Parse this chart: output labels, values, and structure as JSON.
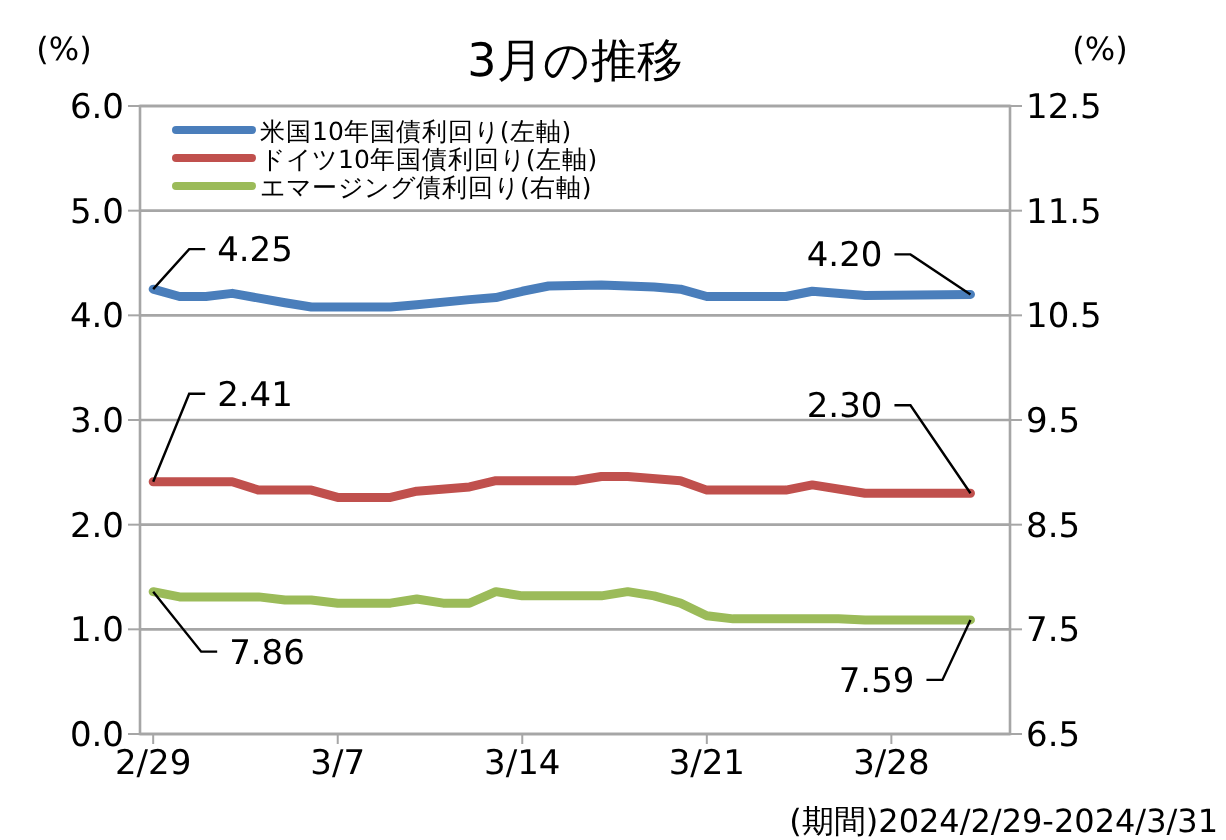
{
  "chart_data": {
    "type": "line",
    "title": "3月の推移",
    "ylabel": "(%)",
    "y2label": "(%)",
    "annotations": [
      "(期間)2024/2/29-2024/3/31"
    ],
    "xlim": [
      "2024-02-28T12:00",
      "2024-04-01T12:00"
    ],
    "xticks": [
      {
        "value": "2024-02-29",
        "label": "2/29"
      },
      {
        "value": "2024-03-07",
        "label": "3/7"
      },
      {
        "value": "2024-03-14",
        "label": "3/14"
      },
      {
        "value": "2024-03-21",
        "label": "3/21"
      },
      {
        "value": "2024-03-28",
        "label": "3/28"
      }
    ],
    "ylim": [
      0,
      6
    ],
    "yticks": [
      {
        "value": 0,
        "label": "0.0"
      },
      {
        "value": 1,
        "label": "1.0"
      },
      {
        "value": 2,
        "label": "2.0"
      },
      {
        "value": 3,
        "label": "3.0"
      },
      {
        "value": 4,
        "label": "4.0"
      },
      {
        "value": 5,
        "label": "5.0"
      },
      {
        "value": 6,
        "label": "6.0"
      }
    ],
    "y2lim": [
      6.5,
      12.5
    ],
    "y2ticks": [
      6.5,
      7.5,
      8.5,
      9.5,
      10.5,
      11.5,
      12.5
    ],
    "grid": "y",
    "legend": "top left",
    "marker": "none",
    "line_style": "solid",
    "series": [
      {
        "name": "米国10年国債利回り(左軸)",
        "color": "#4a7ebb",
        "x": [
          "2024-02-29",
          "2024-03-01",
          "2024-03-02",
          "2024-03-03",
          "2024-03-05",
          "2024-03-06",
          "2024-03-09",
          "2024-03-10",
          "2024-03-12",
          "2024-03-13",
          "2024-03-14",
          "2024-03-15",
          "2024-03-17",
          "2024-03-19",
          "2024-03-20",
          "2024-03-21",
          "2024-03-24",
          "2024-03-25",
          "2024-03-27",
          "2024-03-31"
        ],
        "values": [
          4.25,
          4.18,
          4.18,
          4.21,
          4.12,
          4.08,
          4.08,
          4.1,
          4.15,
          4.17,
          4.23,
          4.28,
          4.29,
          4.27,
          4.25,
          4.18,
          4.18,
          4.23,
          4.19,
          4.2
        ],
        "value_labels": [
          "4.25",
          null,
          null,
          null,
          null,
          null,
          null,
          null,
          null,
          null,
          null,
          null,
          null,
          null,
          null,
          null,
          null,
          null,
          null,
          "4.20"
        ]
      },
      {
        "name": "ドイツ10年国債利回り(左軸)",
        "color": "#c0504d",
        "x": [
          "2024-02-29",
          "2024-03-03",
          "2024-03-04",
          "2024-03-06",
          "2024-03-07",
          "2024-03-09",
          "2024-03-10",
          "2024-03-12",
          "2024-03-13",
          "2024-03-16",
          "2024-03-17",
          "2024-03-18",
          "2024-03-20",
          "2024-03-21",
          "2024-03-24",
          "2024-03-25",
          "2024-03-27",
          "2024-03-31"
        ],
        "values": [
          2.41,
          2.41,
          2.33,
          2.33,
          2.26,
          2.26,
          2.32,
          2.36,
          2.42,
          2.42,
          2.46,
          2.46,
          2.42,
          2.33,
          2.33,
          2.38,
          2.3,
          2.3
        ],
        "value_labels": [
          "2.41",
          null,
          null,
          null,
          null,
          null,
          null,
          null,
          null,
          null,
          null,
          null,
          null,
          null,
          null,
          null,
          null,
          "2.30"
        ]
      },
      {
        "name": "エマージング債利回り(右軸)",
        "color": "#9bbb59",
        "axis": "y2",
        "x": [
          "2024-02-29",
          "2024-03-01",
          "2024-03-04",
          "2024-03-05",
          "2024-03-06",
          "2024-03-07",
          "2024-03-09",
          "2024-03-10",
          "2024-03-11",
          "2024-03-12",
          "2024-03-13",
          "2024-03-14",
          "2024-03-17",
          "2024-03-18",
          "2024-03-19",
          "2024-03-20",
          "2024-03-21",
          "2024-03-22",
          "2024-03-26",
          "2024-03-27",
          "2024-03-31"
        ],
        "values": [
          7.86,
          7.81,
          7.81,
          7.78,
          7.78,
          7.75,
          7.75,
          7.79,
          7.75,
          7.75,
          7.86,
          7.82,
          7.82,
          7.86,
          7.82,
          7.75,
          7.63,
          7.6,
          7.6,
          7.59,
          7.59
        ],
        "value_labels": [
          "7.86",
          null,
          null,
          null,
          null,
          null,
          null,
          null,
          null,
          null,
          null,
          null,
          null,
          null,
          null,
          null,
          null,
          null,
          null,
          null,
          "7.59"
        ]
      }
    ]
  }
}
